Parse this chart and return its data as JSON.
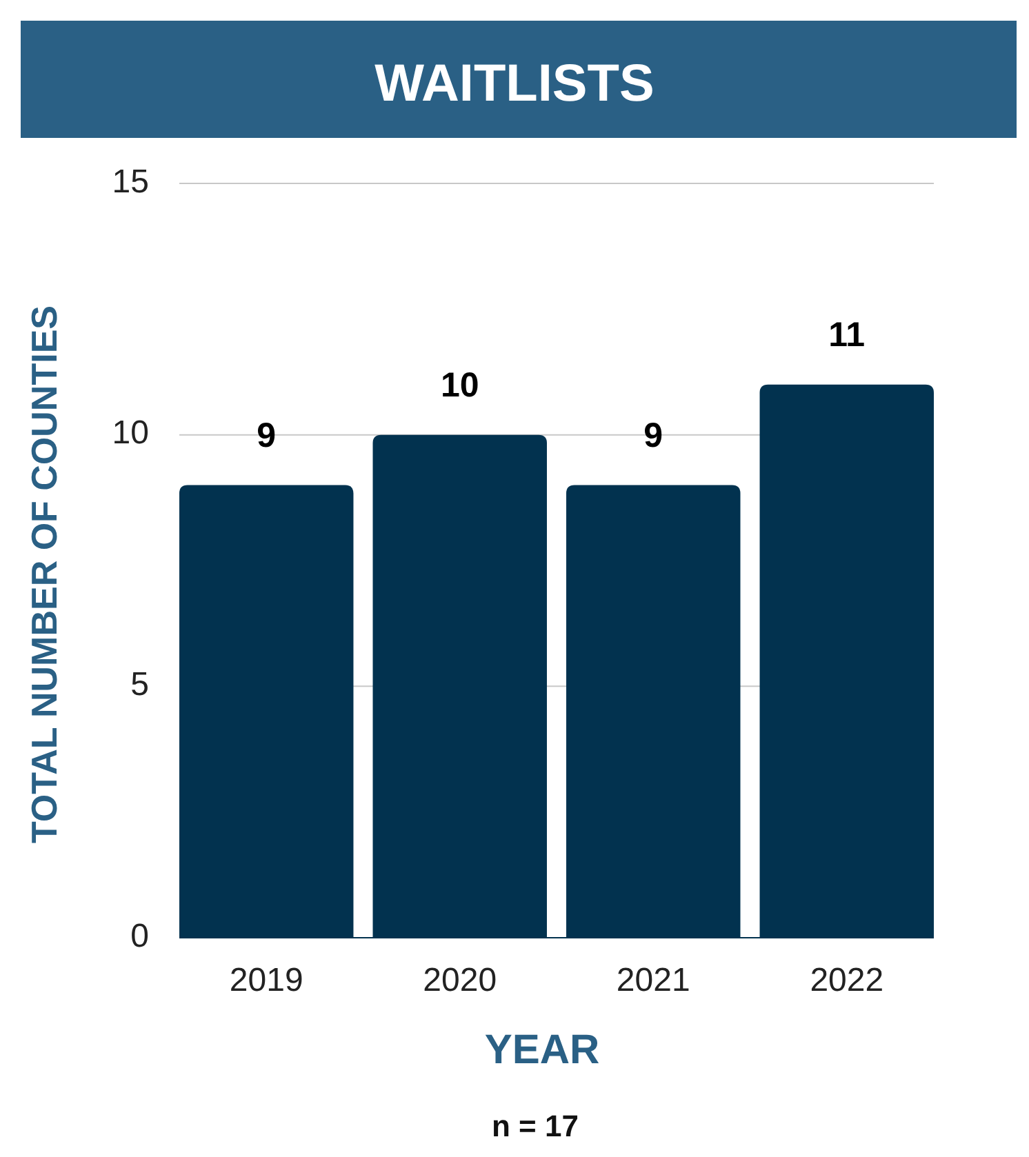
{
  "chart_data": {
    "type": "bar",
    "title": "WAITLISTS",
    "xlabel": "YEAR",
    "ylabel": "TOTAL NUMBER OF COUNTIES",
    "categories": [
      "2019",
      "2020",
      "2021",
      "2022"
    ],
    "values": [
      9,
      10,
      9,
      11
    ],
    "color": "#02324f",
    "ylim": [
      0,
      15
    ],
    "yticks": [
      0,
      5,
      10,
      15
    ],
    "grid": "y",
    "data_labels": true,
    "annotations": [
      "n = 17"
    ]
  }
}
